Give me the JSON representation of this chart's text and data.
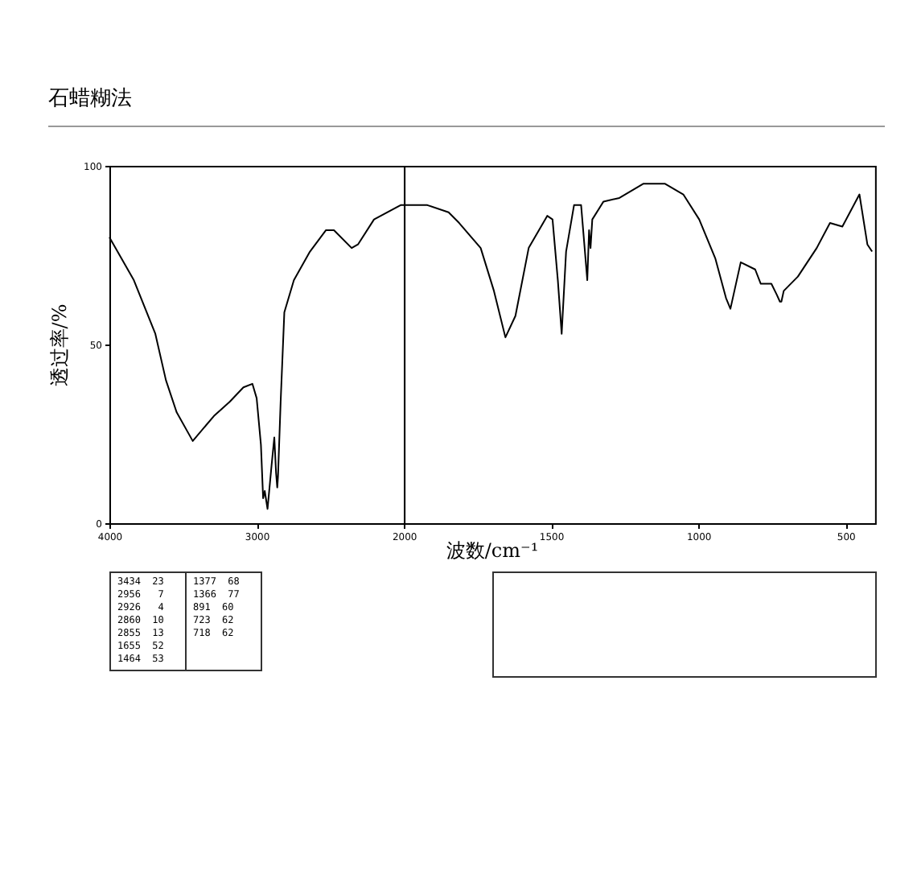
{
  "chart_data": [
    {
      "type": "line",
      "title": "石蜡糊法",
      "ylabel": "透过率/%",
      "xlim": [
        4000,
        2000
      ],
      "xticks": [
        4000,
        3000,
        2000
      ],
      "ylim": [
        0,
        100
      ],
      "yticks": [
        0,
        50,
        100
      ],
      "grid": false,
      "marker": "none",
      "line_style": "solid",
      "series": [
        {
          "color": "#000000",
          "x": [
            4000,
            3986,
            3834,
            3688,
            3616,
            3543,
            3434,
            3290,
            3182,
            3090,
            3029,
            3000,
            2971,
            2956,
            2945,
            2926,
            2899,
            2880,
            2868,
            2860,
            2855,
            2837,
            2812,
            2747,
            2638,
            2529,
            2475,
            2355,
            2312,
            2203,
            2022,
            2000
          ],
          "values": [
            80,
            79,
            68,
            53,
            40,
            31,
            23,
            30,
            34,
            38,
            39,
            35,
            22,
            7,
            9,
            4,
            16,
            24,
            14,
            10,
            13,
            34,
            59,
            68,
            76,
            82,
            82,
            77,
            78,
            85,
            89,
            89
          ]
        }
      ],
      "annotations": [
        "3434  23",
        "2956   7",
        "2926   4",
        "2860  10",
        "2855  13",
        "1655  52",
        "1464  53",
        "1377  68",
        "1366  77",
        "891  60",
        "723  62",
        "718  62"
      ]
    },
    {
      "type": "line",
      "xlabel": "波数/cm⁻¹",
      "xlim": [
        2000,
        400
      ],
      "xticks": [
        {
          "value": 2000,
          "label": null
        },
        1500,
        1000,
        500
      ],
      "ylim": [
        0,
        100
      ],
      "grid": false,
      "marker": "none",
      "line_style": "solid",
      "series": [
        {
          "color": "#000000",
          "x": [
            2000,
            1920,
            1848,
            1812,
            1739,
            1694,
            1655,
            1621,
            1576,
            1513,
            1495,
            1477,
            1464,
            1449,
            1422,
            1398,
            1377,
            1371,
            1366,
            1360,
            1322,
            1268,
            1186,
            1114,
            1051,
            997,
            942,
            906,
            891,
            856,
            807,
            788,
            752,
            734,
            723,
            718,
            710,
            662,
            598,
            553,
            511,
            453,
            426,
            410
          ],
          "values": [
            89,
            89,
            87,
            84,
            77,
            65,
            52,
            58,
            77,
            86,
            85,
            68,
            53,
            76,
            89,
            89,
            68,
            82,
            77,
            85,
            90,
            91,
            95,
            95,
            92,
            85,
            74,
            63,
            60,
            73,
            71,
            67,
            67,
            64,
            62,
            62,
            65,
            69,
            77,
            84,
            83,
            92,
            78,
            76
          ]
        }
      ]
    }
  ]
}
